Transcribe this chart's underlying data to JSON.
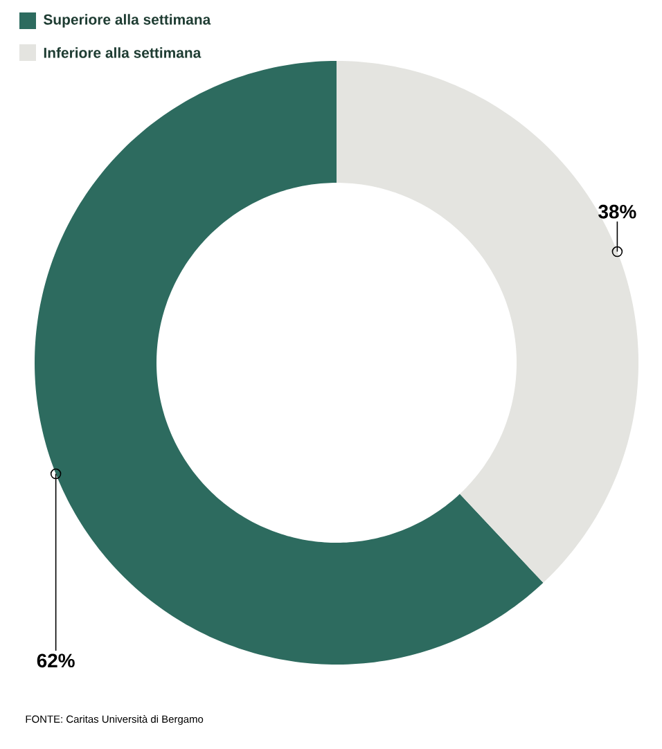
{
  "chart_data": {
    "type": "donut",
    "categories": [
      "Superiore alla settimana",
      "Inferiore alla settimana"
    ],
    "values": [
      62,
      38
    ],
    "colors": [
      "#2d6b5f",
      "#e4e4e0"
    ],
    "value_labels": [
      "62%",
      "38%"
    ],
    "legend": "top left",
    "annotations": [
      "FONTE: Caritas Università di Bergamo"
    ]
  }
}
